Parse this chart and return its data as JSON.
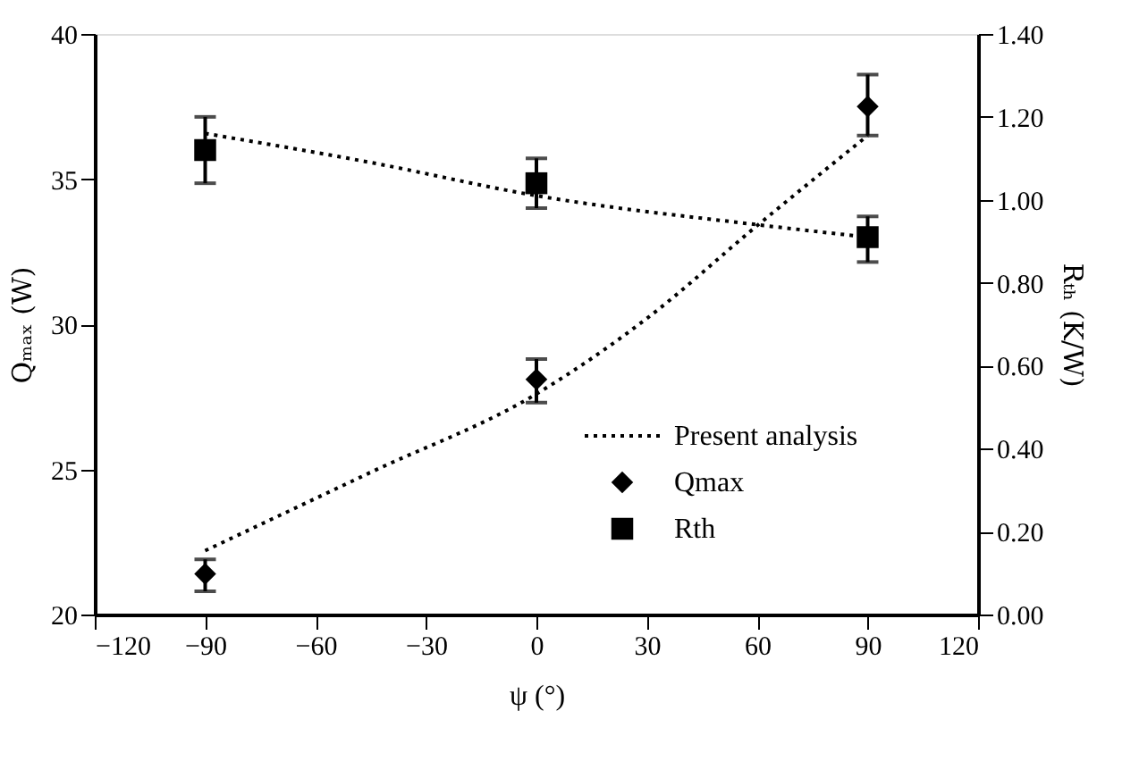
{
  "chart_data": {
    "type": "scatter",
    "xlabel": "ψ (°)",
    "ylabel": "Qₘₐₓ (W)",
    "y2label": "Rₜₕ (K/W)",
    "xlim": [
      -120,
      120
    ],
    "xticks": [
      -120,
      -90,
      -60,
      -30,
      0,
      30,
      60,
      90,
      120
    ],
    "ylim": [
      20,
      40
    ],
    "yticks": [
      20,
      25,
      30,
      35,
      40
    ],
    "y2lim": [
      0,
      1.4
    ],
    "y2ticks": [
      {
        "value": 0,
        "label": "0.00"
      },
      {
        "value": 0.2,
        "label": "0.20"
      },
      {
        "value": 0.4,
        "label": "0.40"
      },
      {
        "value": 0.6,
        "label": "0.60"
      },
      {
        "value": 0.8,
        "label": "0.80"
      },
      {
        "value": 1.0,
        "label": "1.00"
      },
      {
        "value": 1.2,
        "label": "1.20"
      },
      {
        "value": 1.4,
        "label": "1.40"
      }
    ],
    "grid": false,
    "legend": "bottom right",
    "series": [
      {
        "name": "Present analysis",
        "type": "line",
        "line_style": "dotted",
        "marker": "none",
        "color": "#000000",
        "x": [
          -90,
          -45,
          0,
          30,
          60,
          90
        ],
        "values": [
          22.2,
          24.9,
          27.6,
          30.2,
          33.4,
          36.5
        ]
      },
      {
        "type": "line",
        "line_style": "dotted",
        "marker": "none",
        "color": "#000000",
        "axis": "y2",
        "x": [
          -90,
          -45,
          0,
          60,
          90
        ],
        "values": [
          1.16,
          1.09,
          1.01,
          0.94,
          0.91
        ]
      },
      {
        "name": "Qmax",
        "marker": "diamond",
        "color": "#000000",
        "x": [
          -90,
          0,
          90
        ],
        "values": [
          21.4,
          28.1,
          37.5
        ],
        "errors": [
          [
            20.8,
            21.9
          ],
          [
            27.3,
            28.8
          ],
          [
            36.5,
            38.6
          ]
        ]
      },
      {
        "name": "Rth",
        "marker": "square",
        "color": "#000000",
        "axis": "y2",
        "x": [
          -90,
          0,
          90
        ],
        "values": [
          1.12,
          1.04,
          0.91
        ],
        "errors": [
          [
            1.04,
            1.2
          ],
          [
            0.98,
            1.1
          ],
          [
            0.85,
            0.96
          ]
        ]
      }
    ]
  }
}
